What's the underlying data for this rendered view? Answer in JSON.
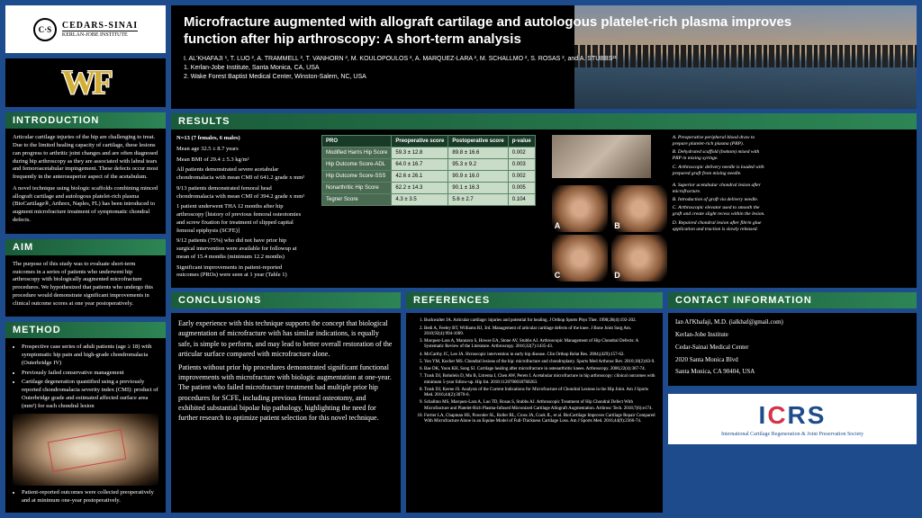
{
  "logos": {
    "cedars": "CEDARS-SINAI",
    "kerlan": "KERLAN-JOBE INSTITUTE",
    "wf": "WF"
  },
  "header": {
    "title": "Microfracture augmented with allograft cartilage and autologous platelet-rich plasma improves function after hip arthroscopy: A short-term analysis",
    "authors": "I. AL'KHAFAJI ¹, T. LUO ², A. TRAMMELL ², T. VANHORN ², M. KOULOPOULOS ², A. MARQUEZ-LARA ², M. SCHALLMO ², S. ROSAS ², and A. STUBBS²¹",
    "affil1": "1. Kerlan-Jobe Institute, Santa Monica, CA, USA",
    "affil2": "2. Wake Forest Baptist Medical Center, Winston-Salem, NC, USA"
  },
  "introduction": {
    "heading": "INTRODUCTION",
    "p1": "Articular cartilage injuries of the hip are challenging to treat. Due to the limited healing capacity of cartilage, these lesions can progress to arthritic joint changes and are often diagnosed during hip arthroscopy as they are associated with labral tears and femoroacetabular impingement. These defects occur most frequently in the anterosuperior aspect of the acetabulum.",
    "p2": "A novel technique using biologic scaffolds combining minced allograft cartilage and autologous platelet-rich plasma (BioCartilage®, Arthrex, Naples, FL) has been introduced to augment microfracture treatment of symptomatic chondral defects."
  },
  "aim": {
    "heading": "AIM",
    "text": "The purpose of this study was to evaluate short-term outcomes in a series of patients who underwent hip arthroscopy with biologically augmented microfracture procedures. We hypothesized that patients who undergo this procedure would demonstrate significant improvements in clinical outcome scores at one year postoperatively."
  },
  "method": {
    "heading": "METHOD",
    "b1": "Prospective case series of adult patients (age ≥ 18) with symptomatic hip pain and high-grade chondromalacia (Outerbridge IV)",
    "b2": "Previously failed conservative management",
    "b3": "Cartilage degeneration quantified using a previously reported chondromalacia severity index (CMI): product of Outerbridge grade and estimated affected surface area (mm²) for each chondral lesion",
    "b4": "Patient-reported outcomes were collected preoperatively and at minimum one-year postoperatively."
  },
  "results": {
    "heading": "RESULTS",
    "n": "N=13 (7 females, 6 males)",
    "age": "Mean age 32.5 ± 8.7 years",
    "bmi": "Mean BMI of 29.4 ± 5.3 kg/m²",
    "p1": "All patients demonstrated severe acetabular chondromalacia with mean CMI of 641.2 grade x mm²",
    "p2": "9/13 patients demonstrated femoral head chondromalacia with mean CMI of 394.2 grade x mm²",
    "p3": "1 patient underwent THA 12 months after hip arthroscopy [history of previous femoral osteotomies and screw fixation for treatment of slipped capital femoral epiphysis (SCFE)]",
    "p4": "9/12 patients (75%) who did not have prior hip surgical intervention were available for followup at mean of 15.4 months (minimum 12.2 months)",
    "p5": "Significant improvements in patient-reported outcomes (PROs) were seen at 1 year (Table 1)",
    "table": {
      "headers": [
        "PRO",
        "Preoperative score",
        "Postoperative score",
        "p-value"
      ],
      "rows": [
        [
          "Modified Harris Hip Score",
          "59.3 ± 12.8",
          "89.8 ± 16.6",
          "0.002"
        ],
        [
          "Hip Outcome Score-ADL",
          "64.0 ± 16.7",
          "95.3 ± 9.2",
          "0.003"
        ],
        [
          "Hip Outcome Score-SSS",
          "42.6 ± 26.1",
          "90.9 ± 16.0",
          "0.002"
        ],
        [
          "Nonarthritic Hip Score",
          "62.2 ± 14.3",
          "90.1 ± 16.3",
          "0.005"
        ],
        [
          "Tegner Score",
          "4.3 ± 3.5",
          "5.6 ± 2.7",
          "0.104"
        ]
      ]
    },
    "captions_top": {
      "a": "A. Preoperative peripheral blood draw to prepare platelet-rich plasma (PRP).",
      "b": "B. Dehydrated scaffold (bottom) mixed with PRP in mixing syringe.",
      "c": "C. Arthroscopic delivery needle is loaded with prepared graft from mixing needle."
    },
    "captions_bot": {
      "a": "A. Superior acetabular chondral lesion after microfracture.",
      "b": "B. Introduction of graft via delivery needle.",
      "c": "C. Arthroscopic elevator used to smooth the graft and create slight recess within the lesion.",
      "d": "D. Repaired chondral lesion after fibrin glue application and traction is slowly released."
    }
  },
  "conclusions": {
    "heading": "CONCLUSIONS",
    "p1": "Early experience with this technique supports the concept that biological augmentation of microfracture with has similar indications, is equally safe, is simple to perform, and may lead to better overall restoration of the articular surface compared with microfracture alone.",
    "p2": "Patients without prior hip procedures demonstrated significant functional improvements with microfracture with biologic augmentation at one-year. The patient who failed microfracture treatment had multiple prior hip procedures for SCFE, including previous femoral osteotomy, and exhibited substantial bipolar hip pathology, highlighting the need for further research to optimize patient selection for this novel technique."
  },
  "references": {
    "heading": "REFERENCES",
    "items": [
      "Buckwalter JA. Articular cartilage: injuries and potential for healing. J Orthop Sports Phys Ther. 1998;28(4):192-202.",
      "Bedi A, Feeley BT, Williams RJ, 3rd. Management of articular cartilage defects of the knee. J Bone Joint Surg Am. 2010;92(4):994-1009.",
      "Marquez-Lara A, Mannava S, Howse EA, Stone AV, Stubbs AJ. Arthroscopic Management of Hip Chondral Defects: A Systematic Review of the Literature. Arthroscopy. 2016;32(7):1435-43.",
      "McCarthy JC, Lee JA. Hcroscopic intervention in early hip disease. Clin Orthop Relat Res. 2004;(429):157-62.",
      "Yen YM, Kocher MS. Chondral lesions of the hip: microfracture and chondroplasty. Sports Med Arthrosc Rev. 2010;18(2):83-9.",
      "Bae DK, Yoon KH, Song SJ. Cartilage healing after microfracture in osteoarthritic knees. Arthroscopy. 2006;22(4):367-74.",
      "Trask DJ, Bohnlein D, Mu B, Litrenta J, Chen AW, Perets I. Acetabular microfracture in hip arthroscopy: clinical outcomes with minimum 5-year follow-up. Hip Int. 2018:1120700018760263.",
      "Trask DJ, Keene JS. Analysis of the Current Indications for Microfracture of Chondral Lesions in the Hip Joint. Am J Sports Med. 2016;44(2):3070-6.",
      "Schallmo MS, Marquez-Lara A, Luo TD, Rosas S, Stubbs AJ. Arthroscopic Treatment of Hip Chondral Defect With Microfracture and Platelet-Rich Plasma-Infused Micronized Cartilage Allograft Augmentation. Arthrosc Tech. 2018;7(6):e174.",
      "Fortier LA, Chapman HS, Pownder SL, Roller BL, Cross JA, Cook JL, et al. BioCartilage Improves Cartilage Repair Compared With Microfracture Alone in an Equine Model of Full-Thickness Cartilage Loss. Am J Sports Med. 2016;44(9):2366-74."
    ]
  },
  "contact": {
    "heading": "CONTACT INFORMATION",
    "name": "Ian Al'Khafaji, M.D. (ialkhaf@gmail.com)",
    "inst": "Kerlan-Jobe Institute",
    "center": "Cedar-Sainai Medical Center",
    "addr1": "2020 Santa Monica Blvd",
    "addr2": "Santa Monica, CA 90404, USA"
  },
  "icrs": {
    "logo": "I C R S",
    "tag": "International Cartilage Regeneration & Joint Preservation Society"
  }
}
